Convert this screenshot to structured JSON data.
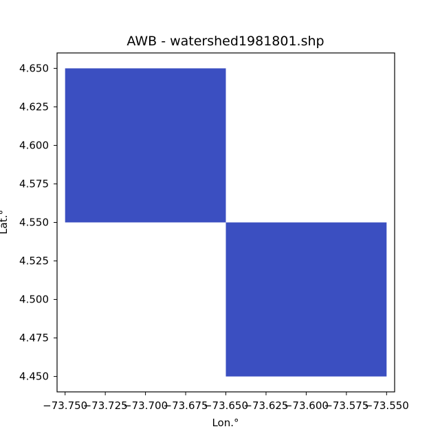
{
  "chart_data": {
    "type": "heatmap",
    "title": "AWB - watershed1981801.shp",
    "xlabel": "Lon.°",
    "ylabel": "Lat.°",
    "xlim": [
      -73.755,
      -73.545
    ],
    "ylim": [
      4.44,
      4.66
    ],
    "xticks": [
      -73.75,
      -73.725,
      -73.7,
      -73.675,
      -73.65,
      -73.625,
      -73.6,
      -73.575,
      -73.55
    ],
    "xtick_labels": [
      "−73.750",
      "−73.725",
      "−73.700",
      "−73.675",
      "−73.650",
      "−73.625",
      "−73.600",
      "−73.575",
      "−73.550"
    ],
    "yticks": [
      4.45,
      4.475,
      4.5,
      4.525,
      4.55,
      4.575,
      4.6,
      4.625,
      4.65
    ],
    "ytick_labels": [
      "4.450",
      "4.475",
      "4.500",
      "4.525",
      "4.550",
      "4.575",
      "4.600",
      "4.625",
      "4.650"
    ],
    "cells": [
      {
        "lon_min": -73.75,
        "lon_max": -73.65,
        "lat_min": 4.55,
        "lat_max": 4.65
      },
      {
        "lon_min": -73.65,
        "lon_max": -73.55,
        "lat_min": 4.45,
        "lat_max": 4.55
      }
    ],
    "cell_color": "#3b4fc1",
    "grid": false,
    "legend": "none"
  }
}
